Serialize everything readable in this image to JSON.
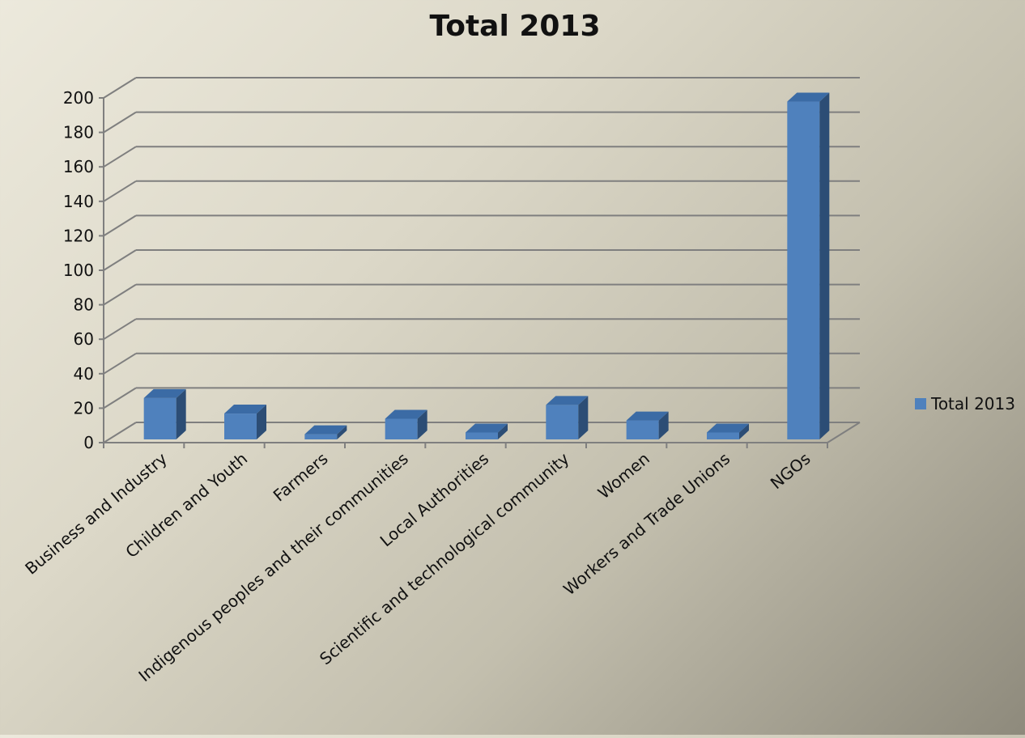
{
  "chart_data": {
    "type": "bar",
    "title": "Total 2013",
    "categories": [
      "Business and Industry",
      "Children and Youth",
      "Farmers",
      "Indigenous peoples and their communities",
      "Local Authorities",
      "Scientific and technological community",
      "Women",
      "Workers and Trade Unions",
      "NGOs"
    ],
    "series": [
      {
        "name": "Total 2013",
        "values": [
          24,
          15,
          3,
          12,
          4,
          20,
          11,
          4,
          196
        ],
        "color": "#4f81bd"
      }
    ],
    "yticks": [
      0,
      20,
      40,
      60,
      80,
      100,
      120,
      140,
      160,
      180,
      200
    ],
    "ylim": [
      0,
      200
    ],
    "grid": true,
    "legend_position": "right",
    "style": "3d-column"
  }
}
